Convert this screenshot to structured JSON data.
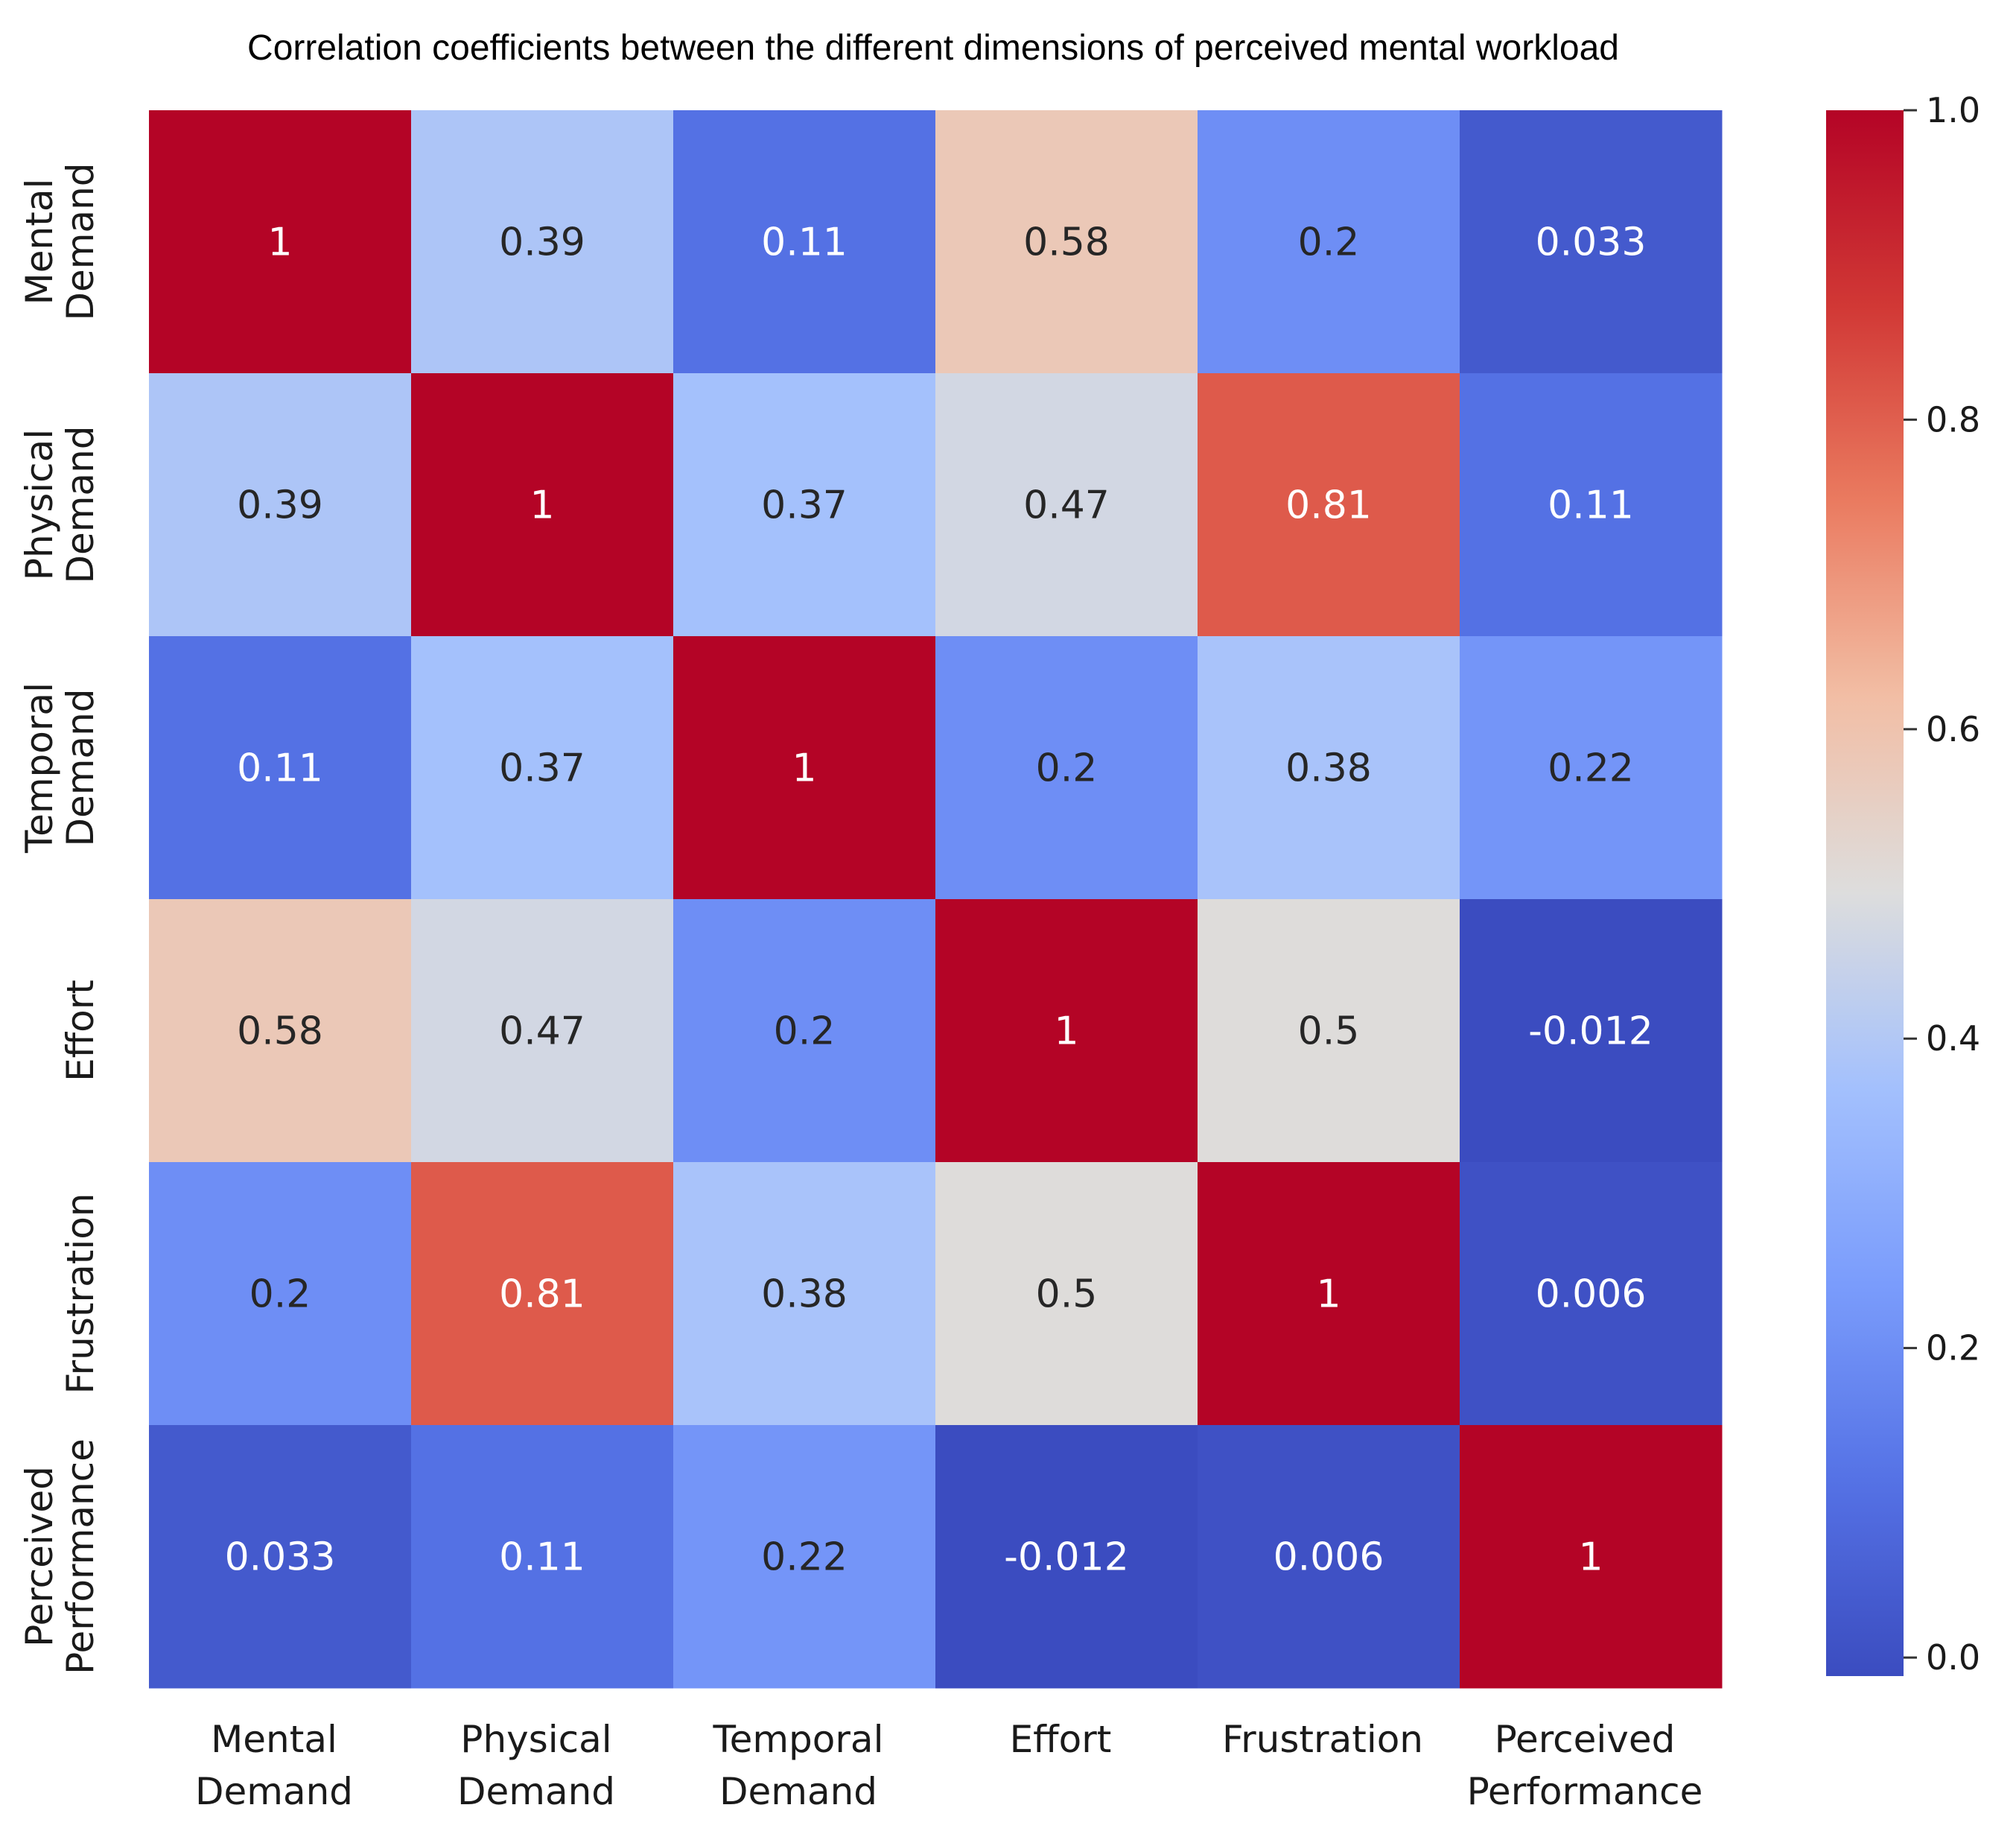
{
  "chart_data": {
    "type": "heatmap",
    "title": "Correlation coefficients between the different dimensions of perceived mental workload",
    "rows": [
      [
        "Mental",
        "Demand"
      ],
      [
        "Physical",
        "Demand"
      ],
      [
        "Temporal",
        "Demand"
      ],
      [
        "Effort"
      ],
      [
        "Frustration"
      ],
      [
        "Perceived",
        "Performance"
      ]
    ],
    "columns": [
      [
        "Mental",
        "Demand"
      ],
      [
        "Physical",
        "Demand"
      ],
      [
        "Temporal",
        "Demand"
      ],
      [
        "Effort"
      ],
      [
        "Frustration"
      ],
      [
        "Perceived",
        "Performance"
      ]
    ],
    "values": [
      [
        1,
        0.39,
        0.11,
        0.58,
        0.2,
        0.033
      ],
      [
        0.39,
        1,
        0.37,
        0.47,
        0.81,
        0.11
      ],
      [
        0.11,
        0.37,
        1,
        0.2,
        0.38,
        0.22
      ],
      [
        0.58,
        0.47,
        0.2,
        1,
        0.5,
        -0.012
      ],
      [
        0.2,
        0.81,
        0.38,
        0.5,
        1,
        0.006
      ],
      [
        0.033,
        0.11,
        0.22,
        -0.012,
        0.006,
        1
      ]
    ],
    "labels": [
      [
        "1",
        "0.39",
        "0.11",
        "0.58",
        "0.2",
        "0.033"
      ],
      [
        "0.39",
        "1",
        "0.37",
        "0.47",
        "0.81",
        "0.11"
      ],
      [
        "0.11",
        "0.37",
        "1",
        "0.2",
        "0.38",
        "0.22"
      ],
      [
        "0.58",
        "0.47",
        "0.2",
        "1",
        "0.5",
        "-0.012"
      ],
      [
        "0.2",
        "0.81",
        "0.38",
        "0.5",
        "1",
        "0.006"
      ],
      [
        "0.033",
        "0.11",
        "0.22",
        "-0.012",
        "0.006",
        "1"
      ]
    ],
    "colormap": "coolwarm",
    "vmin": -0.012,
    "vmax": 1.0,
    "colorbar": {
      "ticks": [
        0.0,
        0.2,
        0.4,
        0.6,
        0.8,
        1.0
      ],
      "tick_labels": [
        "0.0",
        "0.2",
        "0.4",
        "0.6",
        "0.8",
        "1.0"
      ]
    }
  }
}
